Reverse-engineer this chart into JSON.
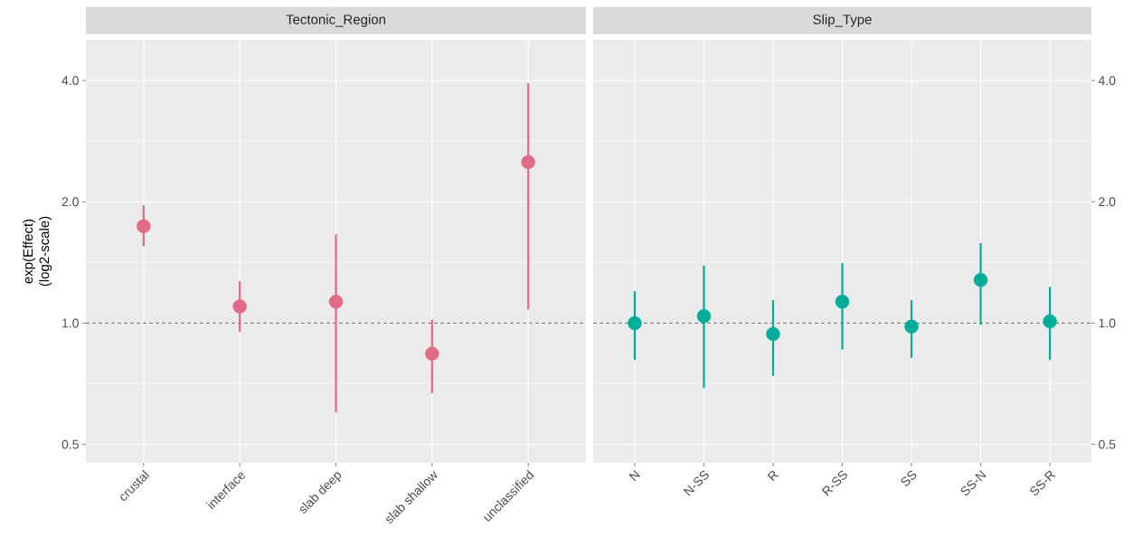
{
  "chart_data": [
    {
      "type": "scatter",
      "title": "Tectonic_Region",
      "ylabel": "exp(Effect) (log2-scale)",
      "categories": [
        "crustal",
        "interface",
        "slab deep",
        "slab shallow",
        "unclassified"
      ],
      "values": [
        1.74,
        1.1,
        1.13,
        0.84,
        2.51
      ],
      "errors": [
        [
          1.55,
          1.96
        ],
        [
          0.95,
          1.27
        ],
        [
          0.6,
          1.66
        ],
        [
          0.67,
          1.02
        ],
        [
          1.08,
          3.94
        ]
      ],
      "color": "#e16a86",
      "marker": "circle",
      "log": "y",
      "grid": true,
      "ylim": [
        0.45,
        5.05
      ],
      "yticks": [
        {
          "value": 0.5,
          "label": "0.5"
        },
        {
          "value": 1,
          "label": "1.0"
        },
        {
          "value": 2,
          "label": "2.0"
        },
        {
          "value": 4,
          "label": "4.0"
        }
      ],
      "ref_lines": [
        {
          "axis": "y",
          "value": 1,
          "color": "#4d4d4d",
          "line_style": "dashed"
        }
      ]
    },
    {
      "type": "scatter",
      "title": "Slip_Type",
      "categories": [
        "N",
        "N-SS",
        "R",
        "R-SS",
        "SS",
        "SS-N",
        "SS-R"
      ],
      "series": [
        {
          "color": "#00ad9a",
          "axis": "y2",
          "values": [
            1.0,
            1.04,
            0.94,
            1.13,
            0.98,
            1.28,
            1.01
          ],
          "errors": [
            [
              0.81,
              1.2
            ],
            [
              0.69,
              1.39
            ],
            [
              0.74,
              1.14
            ],
            [
              0.86,
              1.41
            ],
            [
              0.82,
              1.14
            ],
            [
              0.99,
              1.58
            ],
            [
              0.81,
              1.23
            ]
          ]
        }
      ],
      "marker": "circle",
      "log": "y2",
      "grid": true,
      "y2lim": [
        0.45,
        5.05
      ],
      "y2ticks": [
        {
          "value": 0.5,
          "label": "0.5"
        },
        {
          "value": 1,
          "label": "1.0"
        },
        {
          "value": 2,
          "label": "2.0"
        },
        {
          "value": 4,
          "label": "4.0"
        }
      ],
      "ref_lines": [
        {
          "axis": "y2",
          "value": 1,
          "color": "#4d4d4d",
          "line_style": "dashed"
        }
      ]
    }
  ]
}
